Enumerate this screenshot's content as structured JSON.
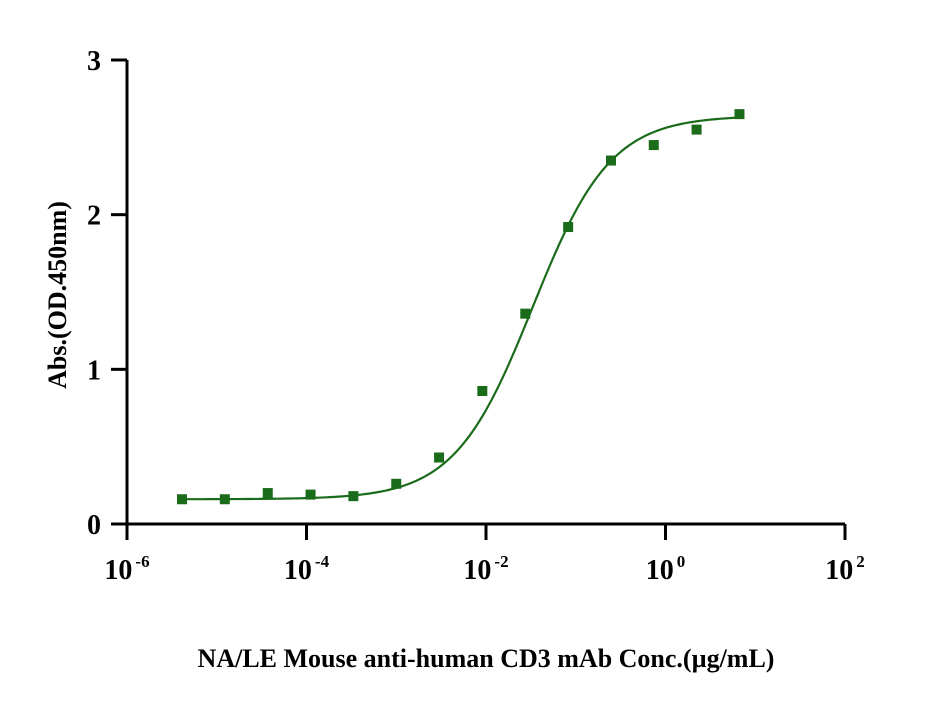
{
  "chart_data": {
    "type": "scatter",
    "xlabel": "NA/LE Mouse anti-human CD3 mAb Conc.(µg/mL)",
    "ylabel": "Abs.(OD.450nm)",
    "x_scale": "log",
    "xlim": [
      1e-06,
      100
    ],
    "ylim": [
      0,
      3
    ],
    "x_ticks": [
      {
        "base": "10",
        "exp": "-6",
        "value": 1e-06
      },
      {
        "base": "10",
        "exp": "-4",
        "value": 0.0001
      },
      {
        "base": "10",
        "exp": "-2",
        "value": 0.01
      },
      {
        "base": "10",
        "exp": "0",
        "value": 1
      },
      {
        "base": "10",
        "exp": "2",
        "value": 100
      }
    ],
    "y_ticks": [
      {
        "label": "0",
        "value": 0
      },
      {
        "label": "1",
        "value": 1
      },
      {
        "label": "2",
        "value": 2
      },
      {
        "label": "3",
        "value": 3
      }
    ],
    "grid": false,
    "legend": "none",
    "color": "#1a6b1a",
    "series": [
      {
        "marker": "square",
        "x": [
          4.1e-06,
          1.23e-05,
          3.7e-05,
          0.000111,
          0.000333,
          0.001,
          0.003,
          0.0091,
          0.0274,
          0.0823,
          0.247,
          0.74,
          2.22,
          6.67
        ],
        "y": [
          0.16,
          0.16,
          0.2,
          0.19,
          0.18,
          0.26,
          0.43,
          0.86,
          1.36,
          1.92,
          2.35,
          2.45,
          2.55,
          2.65
        ]
      }
    ],
    "fit": {
      "model": "4PL",
      "bottom": 0.16,
      "top": 2.64,
      "ec50": 0.033,
      "hill": 1.0,
      "x_range": [
        4.1e-06,
        6.67
      ]
    }
  }
}
